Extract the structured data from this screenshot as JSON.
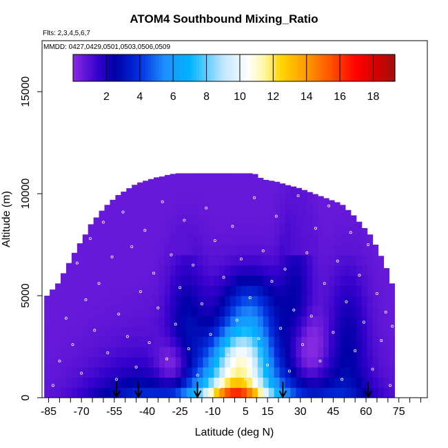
{
  "chart_data": {
    "type": "heatmap",
    "title": "ATOM4 Southbound Mixing_Ratio",
    "subtitle": "Flts: 2,3,4,5,6,7",
    "annotation": "MMDD: 0427,0429,0501,0503,0506,0509",
    "xlabel": "Latitude (deg N)",
    "ylabel": "Altitude (m)",
    "xlim": [
      -88,
      88
    ],
    "ylim": [
      0,
      17500
    ],
    "x_ticks": [
      -85,
      -70,
      -55,
      -40,
      -25,
      -10,
      5,
      15,
      30,
      45,
      60,
      75
    ],
    "x_minor_step": 5,
    "y_ticks": [
      0,
      5000,
      10000,
      15000
    ],
    "colorbar": {
      "range": [
        0,
        19.3
      ],
      "ticks": [
        2,
        4,
        6,
        8,
        10,
        12,
        14,
        16,
        18
      ],
      "stops": [
        {
          "v": 0,
          "color": "#8a2be2"
        },
        {
          "v": 1.5,
          "color": "#3300cc"
        },
        {
          "v": 2.5,
          "color": "#0000a8"
        },
        {
          "v": 4,
          "color": "#0030e0"
        },
        {
          "v": 5.5,
          "color": "#1e90ff"
        },
        {
          "v": 7,
          "color": "#00b4ff"
        },
        {
          "v": 9,
          "color": "#bfe6ff"
        },
        {
          "v": 10.5,
          "color": "#ffffff"
        },
        {
          "v": 11.5,
          "color": "#fff6a0"
        },
        {
          "v": 12.5,
          "color": "#ffd400"
        },
        {
          "v": 14,
          "color": "#ff9900"
        },
        {
          "v": 15.5,
          "color": "#ff5000"
        },
        {
          "v": 17,
          "color": "#ff0000"
        },
        {
          "v": 18.2,
          "color": "#d40000"
        },
        {
          "v": 19.3,
          "color": "#a01010"
        }
      ]
    },
    "envelope": [
      {
        "lat": -87,
        "top": 5000
      },
      {
        "lat": -82,
        "top": 5600
      },
      {
        "lat": -79,
        "top": 6200
      },
      {
        "lat": -76,
        "top": 6800
      },
      {
        "lat": -73,
        "top": 7400
      },
      {
        "lat": -70,
        "top": 7900
      },
      {
        "lat": -67,
        "top": 8500
      },
      {
        "lat": -64,
        "top": 8900
      },
      {
        "lat": -61,
        "top": 9300
      },
      {
        "lat": -58,
        "top": 9600
      },
      {
        "lat": -55,
        "top": 9900
      },
      {
        "lat": -52,
        "top": 10100
      },
      {
        "lat": -49,
        "top": 10300
      },
      {
        "lat": -46,
        "top": 10500
      },
      {
        "lat": -43,
        "top": 10600
      },
      {
        "lat": -40,
        "top": 10700
      },
      {
        "lat": -37,
        "top": 10800
      },
      {
        "lat": -34,
        "top": 10850
      },
      {
        "lat": -31,
        "top": 10950
      },
      {
        "lat": -27,
        "top": 11000
      },
      {
        "lat": -20,
        "top": 11000
      },
      {
        "lat": -10,
        "top": 11000
      },
      {
        "lat": 0,
        "top": 11000
      },
      {
        "lat": 10,
        "top": 11000
      },
      {
        "lat": 14,
        "top": 10700
      },
      {
        "lat": 20,
        "top": 10600
      },
      {
        "lat": 26,
        "top": 10400
      },
      {
        "lat": 30,
        "top": 10300
      },
      {
        "lat": 35,
        "top": 10100
      },
      {
        "lat": 40,
        "top": 9900
      },
      {
        "lat": 45,
        "top": 9700
      },
      {
        "lat": 50,
        "top": 9500
      },
      {
        "lat": 55,
        "top": 9000
      },
      {
        "lat": 59,
        "top": 8500
      },
      {
        "lat": 63,
        "top": 8000
      },
      {
        "lat": 66,
        "top": 7400
      },
      {
        "lat": 70,
        "top": 6500
      },
      {
        "lat": 73,
        "top": 5600
      }
    ],
    "field_features": [
      {
        "type": "boundary_layer_max",
        "lat_range": [
          -20,
          18
        ],
        "alt_range": [
          0,
          1200
        ],
        "value": 18.3
      },
      {
        "type": "plume",
        "lat_range": [
          -5,
          10
        ],
        "alt_range": [
          1200,
          3000
        ],
        "value": 14
      },
      {
        "type": "moist_column",
        "lat_range": [
          -8,
          22
        ],
        "alt_range": [
          3000,
          5500
        ],
        "value": 6.5
      },
      {
        "type": "dry_upper",
        "alt_range": [
          7000,
          11000
        ],
        "value": 0.5
      }
    ],
    "profile_arrows_lat": [
      -54,
      -44,
      -17,
      22,
      61
    ],
    "sample_points": [
      [
        -83,
        600
      ],
      [
        -80,
        1800
      ],
      [
        -77,
        3900
      ],
      [
        -74,
        2600
      ],
      [
        -72,
        6600
      ],
      [
        -70,
        1200
      ],
      [
        -68,
        4800
      ],
      [
        -66,
        7800
      ],
      [
        -64,
        3300
      ],
      [
        -62,
        5600
      ],
      [
        -60,
        8600
      ],
      [
        -58,
        2200
      ],
      [
        -56,
        6900
      ],
      [
        -54,
        900
      ],
      [
        -53,
        4100
      ],
      [
        -51,
        9100
      ],
      [
        -49,
        3000
      ],
      [
        -47,
        7400
      ],
      [
        -45,
        1500
      ],
      [
        -43,
        5200
      ],
      [
        -41,
        8200
      ],
      [
        -39,
        2700
      ],
      [
        -37,
        6100
      ],
      [
        -35,
        4400
      ],
      [
        -33,
        9600
      ],
      [
        -31,
        1900
      ],
      [
        -29,
        7000
      ],
      [
        -27,
        3600
      ],
      [
        -25,
        5400
      ],
      [
        -23,
        8700
      ],
      [
        -21,
        2400
      ],
      [
        -19,
        6500
      ],
      [
        -17,
        1100
      ],
      [
        -15,
        4600
      ],
      [
        -13,
        9300
      ],
      [
        -11,
        3100
      ],
      [
        -9,
        7700
      ],
      [
        -7,
        500
      ],
      [
        -5,
        5900
      ],
      [
        -3,
        2100
      ],
      [
        -1,
        8400
      ],
      [
        1,
        3800
      ],
      [
        3,
        6800
      ],
      [
        5,
        900
      ],
      [
        7,
        4900
      ],
      [
        9,
        9800
      ],
      [
        11,
        2900
      ],
      [
        13,
        7200
      ],
      [
        15,
        1600
      ],
      [
        17,
        5700
      ],
      [
        19,
        8900
      ],
      [
        21,
        3400
      ],
      [
        23,
        6300
      ],
      [
        25,
        1300
      ],
      [
        27,
        4300
      ],
      [
        29,
        9900
      ],
      [
        31,
        2600
      ],
      [
        33,
        7100
      ],
      [
        35,
        4000
      ],
      [
        37,
        8300
      ],
      [
        39,
        1800
      ],
      [
        41,
        5600
      ],
      [
        43,
        9400
      ],
      [
        45,
        3200
      ],
      [
        47,
        6700
      ],
      [
        49,
        900
      ],
      [
        51,
        4700
      ],
      [
        53,
        8100
      ],
      [
        55,
        2300
      ],
      [
        57,
        6000
      ],
      [
        59,
        3700
      ],
      [
        61,
        7500
      ],
      [
        63,
        1400
      ],
      [
        65,
        5100
      ],
      [
        67,
        2800
      ],
      [
        69,
        4200
      ],
      [
        71,
        600
      ],
      [
        72,
        3500
      ]
    ]
  }
}
